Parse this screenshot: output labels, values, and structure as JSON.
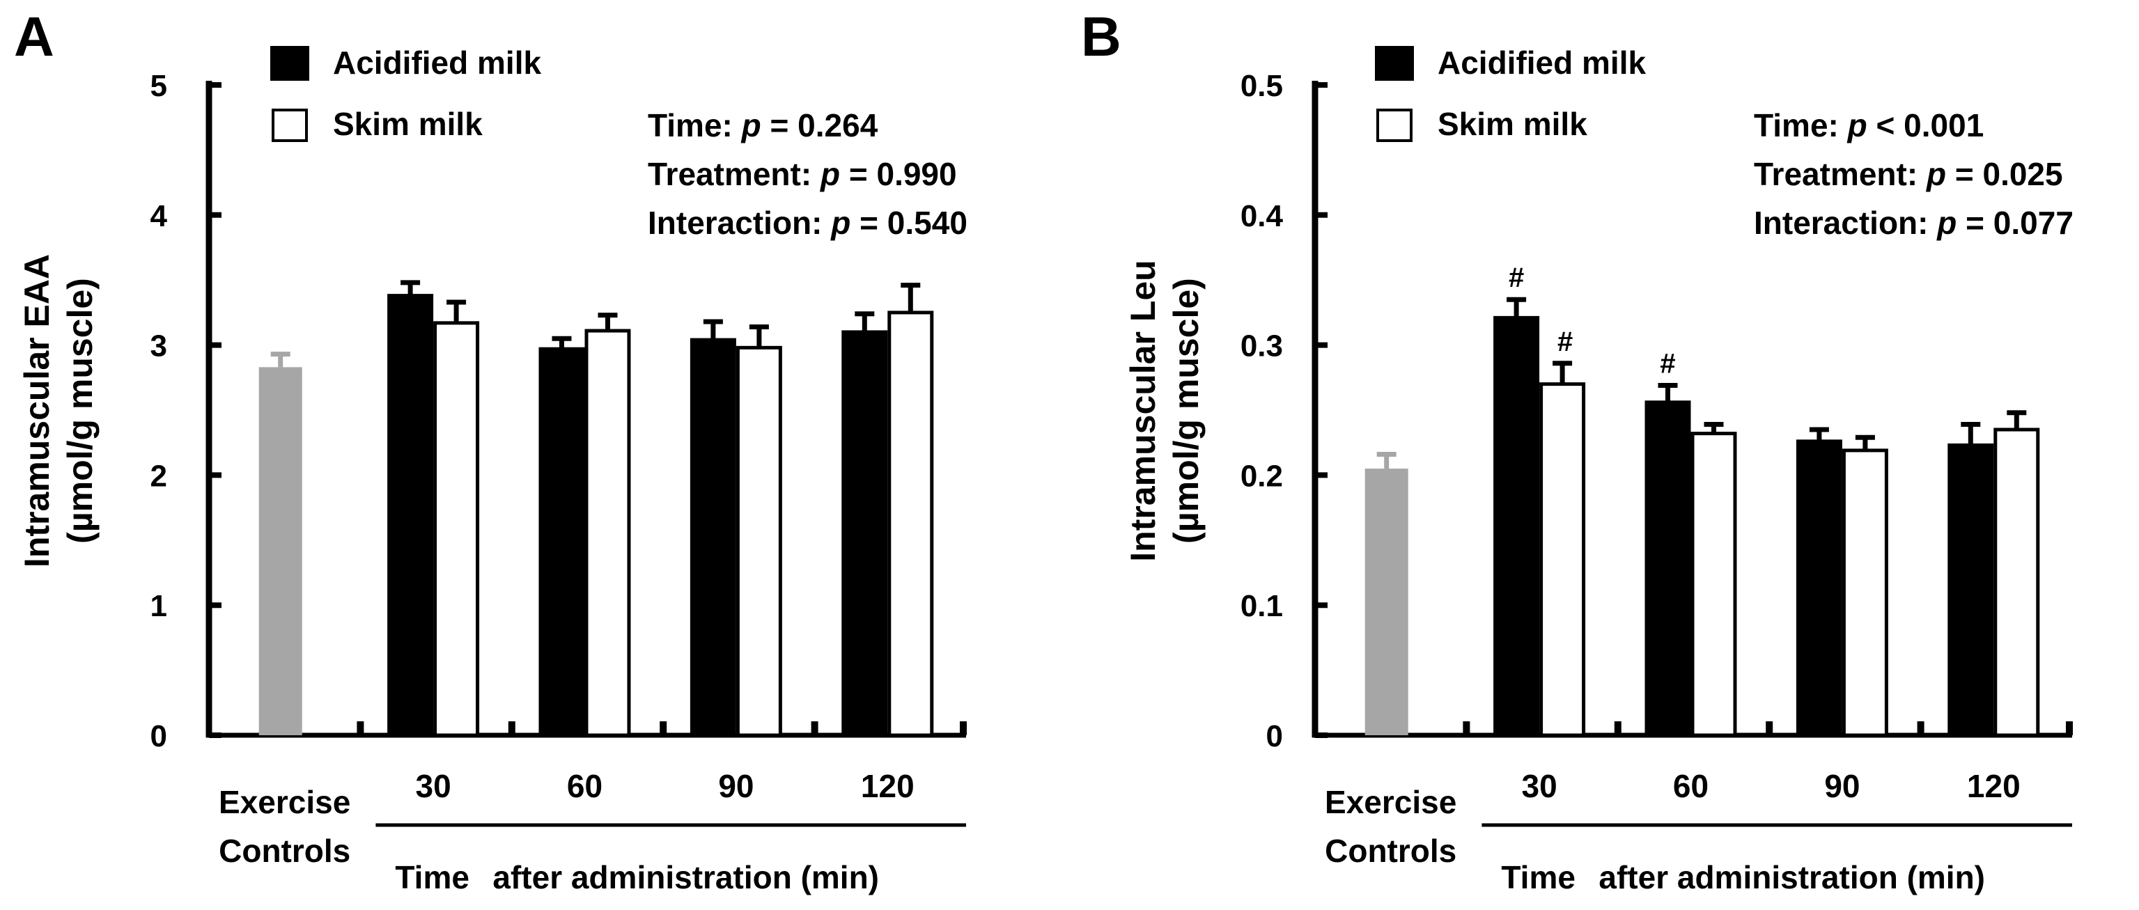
{
  "chart_data": [
    {
      "panel_label": "A",
      "type": "bar",
      "ylabel_line1": "Intramuscular EAA",
      "ylabel_line2": "(µmol/g muscle)",
      "ylim": [
        0,
        5
      ],
      "yticks": [
        "0",
        "1",
        "2",
        "3",
        "4",
        "5"
      ],
      "legend": {
        "series1": "Acidified milk",
        "series2": "Skim milk",
        "placement": "top-left"
      },
      "stats": [
        {
          "label": "Time: ",
          "p": "p",
          "value": " = 0.264"
        },
        {
          "label": "Treatment: ",
          "p": "p",
          "value": " = 0.990"
        },
        {
          "label": "Interaction: ",
          "p": "p",
          "value": " = 0.540"
        }
      ],
      "control": {
        "label_line1": "Exercise",
        "label_line2": "Controls",
        "value": 2.83,
        "error": 0.1,
        "color": "#a6a6a6"
      },
      "categories": [
        "30",
        "60",
        "90",
        "120"
      ],
      "xlabel_part1": "Time",
      "xlabel_part2": "after administration (min)",
      "series": [
        {
          "name": "Acidified milk",
          "values": [
            3.38,
            2.97,
            3.04,
            3.1
          ],
          "errors": [
            0.1,
            0.08,
            0.14,
            0.14
          ],
          "marks": [
            "",
            "",
            "",
            ""
          ],
          "fill": "#000000"
        },
        {
          "name": "Skim milk",
          "values": [
            3.17,
            3.11,
            2.98,
            3.25
          ],
          "errors": [
            0.16,
            0.12,
            0.16,
            0.21
          ],
          "marks": [
            "",
            "",
            "",
            ""
          ],
          "fill": "#ffffff"
        }
      ]
    },
    {
      "panel_label": "B",
      "type": "bar",
      "ylabel_line1": "Intramuscular Leu",
      "ylabel_line2": "(µmol/g muscle)",
      "ylim": [
        0,
        0.5
      ],
      "yticks": [
        "0",
        "0.1",
        "0.2",
        "0.3",
        "0.4",
        "0.5"
      ],
      "legend": {
        "series1": "Acidified milk",
        "series2": "Skim milk",
        "placement": "top-left"
      },
      "stats": [
        {
          "label": "Time: ",
          "p": "p",
          "value": " < 0.001"
        },
        {
          "label": "Treatment: ",
          "p": "p",
          "value": " = 0.025"
        },
        {
          "label": "Interaction: ",
          "p": "p",
          "value": " = 0.077"
        }
      ],
      "control": {
        "label_line1": "Exercise",
        "label_line2": "Controls",
        "value": 0.205,
        "error": 0.011,
        "color": "#a6a6a6"
      },
      "categories": [
        "30",
        "60",
        "90",
        "120"
      ],
      "xlabel_part1": "Time",
      "xlabel_part2": "after administration (min)",
      "series": [
        {
          "name": "Acidified milk",
          "values": [
            0.321,
            0.256,
            0.226,
            0.223
          ],
          "errors": [
            0.014,
            0.013,
            0.009,
            0.016
          ],
          "marks": [
            "#",
            "#",
            "",
            ""
          ],
          "fill": "#000000"
        },
        {
          "name": "Skim milk",
          "values": [
            0.27,
            0.232,
            0.219,
            0.235
          ],
          "errors": [
            0.016,
            0.007,
            0.01,
            0.013
          ],
          "marks": [
            "#",
            "",
            "",
            ""
          ],
          "fill": "#ffffff"
        }
      ]
    }
  ]
}
